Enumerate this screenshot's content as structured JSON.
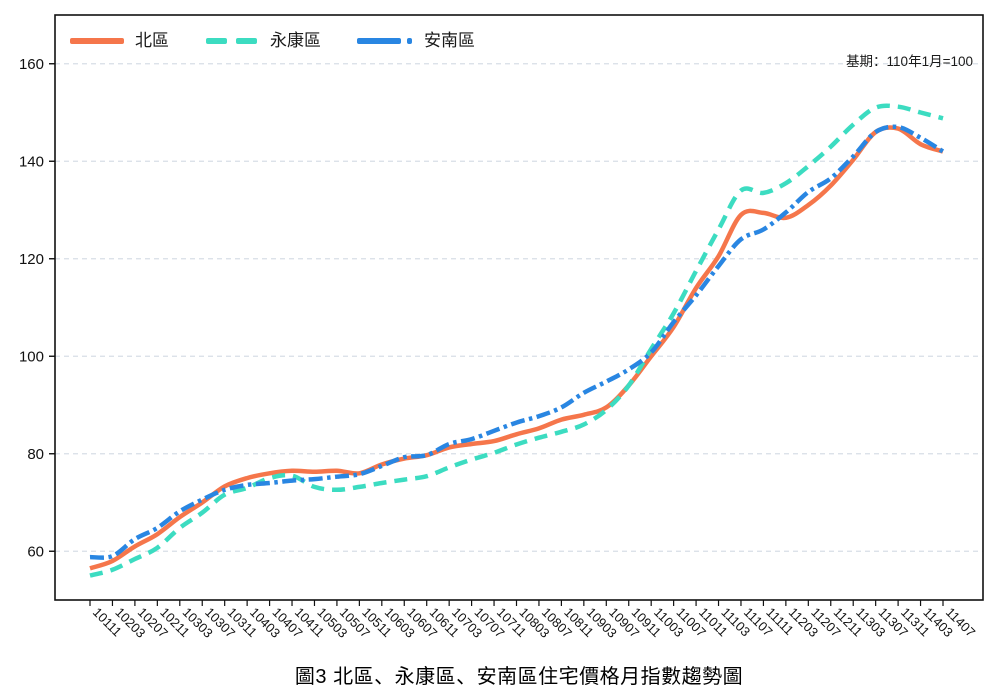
{
  "chart_data": {
    "type": "line",
    "title": "圖3 北區、永康區、安南區住宅價格月指數趨勢圖",
    "note": "基期：110年1月=100",
    "legend_position": "top-left-inside",
    "grid": "horizontal-dashed",
    "ylim": [
      50,
      170
    ],
    "yticks": [
      60,
      80,
      100,
      120,
      140,
      160
    ],
    "x_tick_labels": [
      "10111",
      "10203",
      "10207",
      "10211",
      "10303",
      "10307",
      "10311",
      "10403",
      "10407",
      "10411",
      "10503",
      "10507",
      "10511",
      "10603",
      "10607",
      "10611",
      "10703",
      "10707",
      "10711",
      "10803",
      "10807",
      "10811",
      "10903",
      "10907",
      "10911",
      "11003",
      "11007",
      "11011",
      "11103",
      "11107",
      "11111",
      "11203",
      "11207",
      "11211",
      "11303",
      "11307",
      "11311",
      "11403",
      "11407"
    ],
    "series": [
      {
        "name": "北區",
        "color": "#F5764B",
        "line_style": "solid",
        "values": [
          56.5,
          58,
          61,
          63.5,
          67,
          70,
          73.3,
          75,
          76,
          76.5,
          76.3,
          76.5,
          76,
          77.8,
          79,
          79.7,
          81.3,
          82,
          82.6,
          84,
          85.2,
          87,
          88,
          89.5,
          94,
          100,
          106,
          114,
          120.5,
          129,
          129.4,
          128.4,
          131,
          135,
          140.3,
          146,
          146.7,
          143.5,
          142
        ]
      },
      {
        "name": "永康區",
        "color": "#3CDCC1",
        "line_style": "dashed",
        "values": [
          55,
          56.2,
          58.4,
          60.7,
          64.8,
          67.9,
          71.6,
          73,
          75,
          75.5,
          73.2,
          72.6,
          73.2,
          74,
          74.7,
          75.4,
          77.2,
          78.8,
          80.2,
          81.9,
          83.3,
          84.5,
          86,
          89,
          94,
          101.5,
          108.8,
          117.5,
          126,
          134,
          133.5,
          135.5,
          139,
          143,
          147.5,
          151,
          151.2,
          150,
          148.8
        ]
      },
      {
        "name": "安南區",
        "color": "#2986E2",
        "line_style": "dash-dot",
        "values": [
          58.8,
          59,
          62.5,
          64.8,
          68.2,
          70.6,
          72.6,
          73.6,
          74,
          74.5,
          74.8,
          75.3,
          75.8,
          77.5,
          79.3,
          79.7,
          82,
          83,
          84.7,
          86.4,
          87.7,
          89.5,
          92.5,
          94.8,
          97.3,
          100.8,
          107,
          112.5,
          118.5,
          124,
          126,
          129.5,
          133.7,
          136.5,
          141,
          146,
          147,
          144.8,
          142
        ]
      }
    ]
  },
  "colors": {
    "grid": "#d8dee6",
    "axis": "#111111",
    "tick_text": "#111111"
  }
}
